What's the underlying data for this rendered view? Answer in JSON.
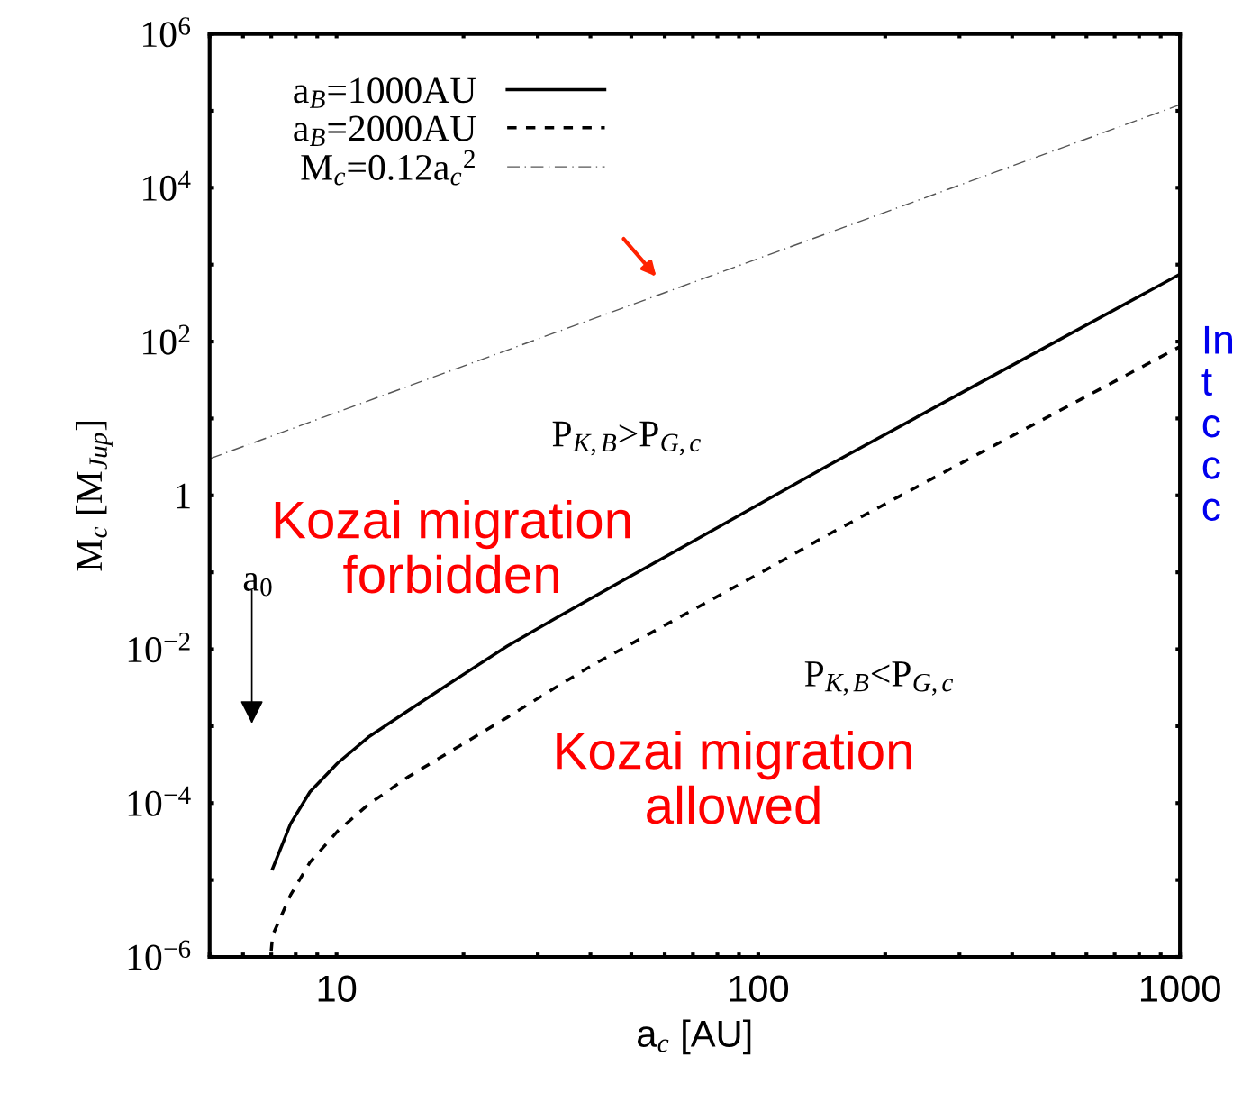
{
  "chart_data": {
    "type": "line",
    "xlabel": "a$_{c}$ [AU]",
    "ylabel": "M$_{c}$ [M$_{Jup}$]",
    "log": "xy",
    "xlim": [
      5,
      1000
    ],
    "ylim": [
      1e-06,
      1000000.0
    ],
    "xticks": [
      {
        "value": 5,
        "label": null
      },
      {
        "value": 6,
        "label": null
      },
      {
        "value": 7,
        "label": null
      },
      {
        "value": 8,
        "label": null
      },
      {
        "value": 9,
        "label": null
      },
      10,
      {
        "value": 20,
        "label": null
      },
      {
        "value": 30,
        "label": null
      },
      {
        "value": 40,
        "label": null
      },
      {
        "value": 50,
        "label": null
      },
      {
        "value": 60,
        "label": null
      },
      {
        "value": 70,
        "label": null
      },
      {
        "value": 80,
        "label": null
      },
      {
        "value": 90,
        "label": null
      },
      100,
      {
        "value": 200,
        "label": null
      },
      {
        "value": 300,
        "label": null
      },
      {
        "value": 400,
        "label": null
      },
      {
        "value": 500,
        "label": null
      },
      {
        "value": 600,
        "label": null
      },
      {
        "value": 700,
        "label": null
      },
      {
        "value": 800,
        "label": null
      },
      {
        "value": 900,
        "label": null
      },
      1000
    ],
    "yticks": [
      {
        "value": 1e-06,
        "label": "10$^{−6}$"
      },
      {
        "value": 1e-05,
        "label": null
      },
      {
        "value": 0.0001,
        "label": "10$^{−4}$"
      },
      {
        "value": 0.001,
        "label": null
      },
      {
        "value": 0.01,
        "label": "10$^{−2}$"
      },
      {
        "value": 0.1,
        "label": null
      },
      1,
      {
        "value": 10,
        "label": null
      },
      {
        "value": 100,
        "label": "10$^{2}$"
      },
      {
        "value": 1000,
        "label": null
      },
      {
        "value": 10000,
        "label": "10$^{4}$"
      },
      {
        "value": 100000,
        "label": null
      },
      {
        "value": 1000000,
        "label": "10$^{6}$"
      }
    ],
    "grid": false,
    "legend": "top left",
    "marker": "none",
    "series": [
      {
        "name": "a$_{B}$=1000AU",
        "color": "#000000",
        "line_style": "solid",
        "x": [
          7.05,
          7.78,
          8.65,
          10.05,
          11.9,
          14.8,
          19.1,
          25.4,
          33.4,
          42.3,
          68.8,
          105,
          145,
          327,
          1000
        ],
        "values": [
          1.4e-05,
          5.4e-05,
          0.00014,
          0.00033,
          0.00072,
          0.0016,
          0.004,
          0.011,
          0.026,
          0.054,
          0.24,
          0.88,
          2.38,
          27,
          750
        ]
      },
      {
        "name": "a$_{B}$=2000AU",
        "color": "#000000",
        "line_style": "dashed",
        "x": [
          7.0,
          7.05,
          7.78,
          8.65,
          10.05,
          11.9,
          14.8,
          19.1,
          25.4,
          33.4,
          40.6,
          62.4,
          105,
          145,
          327,
          1000
        ],
        "values": [
          1.2e-06,
          1.9e-06,
          6.4e-06,
          1.7e-05,
          4.3e-05,
          9.6e-05,
          0.00022,
          0.00051,
          0.0013,
          0.0033,
          0.0063,
          0.023,
          0.11,
          0.3,
          3.3,
          86
        ]
      },
      {
        "name": "M$_{c}$=0.12a$_{c}$$^{2}$",
        "color": "#555555",
        "line_style": "dashdot",
        "x": [
          5,
          1000
        ],
        "values": [
          3,
          120000
        ]
      }
    ],
    "annotations": [
      "P$_{K,B}$>P$_{G,c}$",
      "P$_{K,B}$<P$_{G,c}$",
      "Kozai migration\nforbidden",
      "Kozai migration\nallowed",
      "a$_{0}$",
      "In\nt\nc\nc\nc"
    ]
  }
}
